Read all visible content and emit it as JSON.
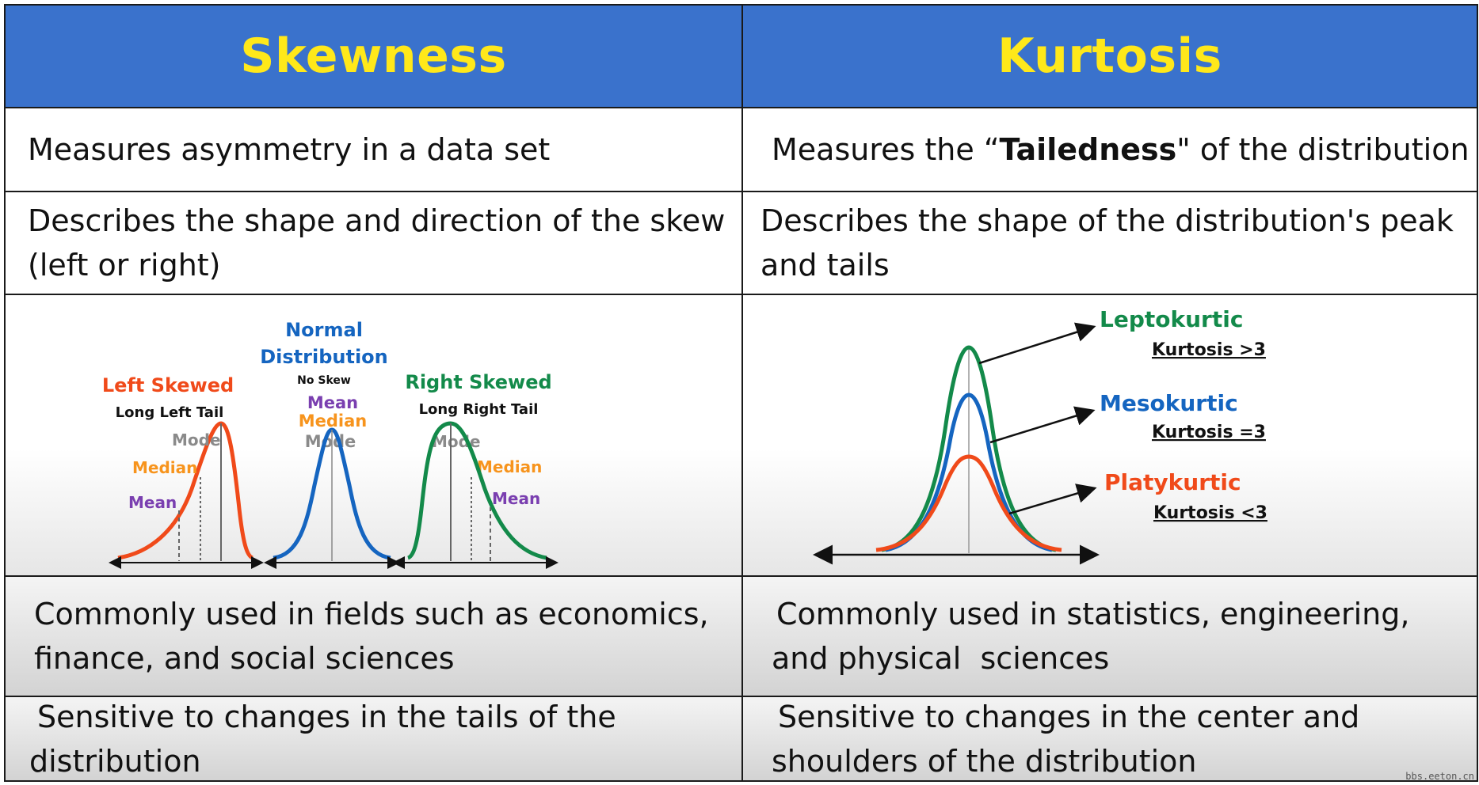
{
  "header": {
    "left": "Skewness",
    "right": "Kurtosis"
  },
  "row1": {
    "left": "Measures asymmetry in a data set",
    "right_prefix": "Measures the “",
    "right_bold": "Tailedness",
    "right_suffix": "\" of the distribution"
  },
  "row2": {
    "left_line1": "Describes the shape and direction of the skew",
    "left_line2": "(left or right)",
    "right_line1": "Describes the shape of the distribution's peak",
    "right_line2": "and tails"
  },
  "skew_diagram": {
    "left": {
      "title": "Left Skewed",
      "subtitle": "Long Left Tail",
      "mode": "Mode",
      "median": "Median",
      "mean": "Mean"
    },
    "normal": {
      "title_line1": "Normal",
      "title_line2": "Distribution",
      "subtitle": "No Skew",
      "mean": "Mean",
      "median": "Median",
      "mode": "Mode"
    },
    "right": {
      "title": "Right Skewed",
      "subtitle": "Long Right Tail",
      "mode": "Mode",
      "median": "Median",
      "mean": "Mean"
    }
  },
  "kurt_diagram": {
    "lepto": {
      "name": "Leptokurtic",
      "value": "Kurtosis >3"
    },
    "meso": {
      "name": "Mesokurtic",
      "value": "Kurtosis =3"
    },
    "platy": {
      "name": "Platykurtic",
      "value": "Kurtosis <3"
    }
  },
  "row4": {
    "left_line1": "Commonly used in fields such as economics,",
    "left_line2": "finance, and social sciences",
    "right_line1": "Commonly used in statistics, engineering,",
    "right_line2": "and physical  sciences"
  },
  "row5": {
    "left_line1": "Sensitive to changes in the tails of the",
    "left_line2": "distribution",
    "right_line1": "Sensitive to changes in the center and",
    "right_line2": "shoulders of the distribution"
  },
  "watermark": "bbs.eeton.cn",
  "colors": {
    "header_bg": "#3a72cc",
    "header_text": "#ffe81a",
    "left_skew": "#f04a1a",
    "normal": "#1565c0",
    "right_skew": "#138a4a",
    "mode": "#8a8a8a",
    "median": "#f7941d",
    "mean": "#7a3fb0",
    "lepto": "#138a4a",
    "meso": "#1565c0",
    "platy": "#f04a1a"
  }
}
